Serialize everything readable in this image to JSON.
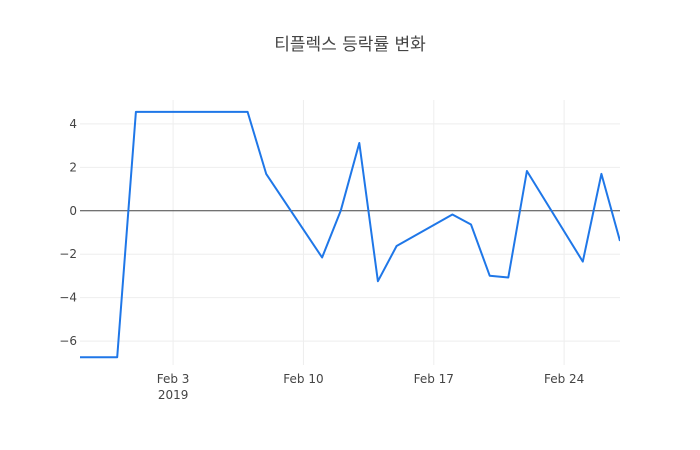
{
  "chart_data": {
    "type": "line",
    "title": "티플렉스 등락률 변화",
    "xlabel": "",
    "ylabel": "",
    "x_tick_labels": [
      "Feb 3",
      "Feb 10",
      "Feb 17",
      "Feb 24"
    ],
    "x_tick_dates": [
      "2019-02-03",
      "2019-02-10",
      "2019-02-17",
      "2019-02-24"
    ],
    "x_tick_sublabel": "2019",
    "y_ticks": [
      -6,
      -4,
      -2,
      0,
      2,
      4
    ],
    "ylim": [
      -7.1,
      5.1
    ],
    "xlim": [
      "2019-01-29",
      "2019-02-26"
    ],
    "grid": true,
    "colors": {
      "line": "#1f77e8",
      "zeroline": "#444444",
      "grid": "#eeeeee"
    },
    "series": [
      {
        "x": [
          "2019-01-29",
          "2019-01-30",
          "2019-01-31",
          "2019-02-01",
          "2019-02-07",
          "2019-02-08",
          "2019-02-11",
          "2019-02-12",
          "2019-02-13",
          "2019-02-14",
          "2019-02-15",
          "2019-02-18",
          "2019-02-19",
          "2019-02-20",
          "2019-02-21",
          "2019-02-22",
          "2019-02-25",
          "2019-02-26",
          "2019-02-27"
        ],
        "y": [
          -6.74,
          -6.74,
          -6.74,
          4.55,
          4.55,
          1.7,
          -2.15,
          0.0,
          3.12,
          -3.24,
          -1.62,
          -0.17,
          -0.63,
          -2.99,
          -3.07,
          1.83,
          -2.34,
          1.7,
          -1.39
        ]
      }
    ]
  }
}
